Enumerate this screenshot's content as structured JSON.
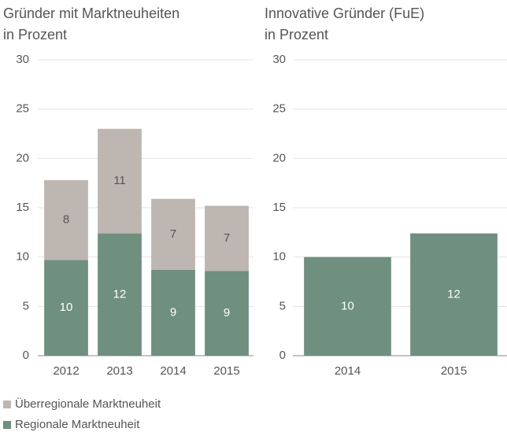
{
  "chart_data": [
    {
      "type": "stacked_bar",
      "title": "Gründer mit Marktneuheiten",
      "subtitle": "in Prozent",
      "categories": [
        "2012",
        "2013",
        "2014",
        "2015"
      ],
      "series": [
        {
          "name": "Regionale Marktneuheit",
          "color": "#6f8f7f",
          "values": [
            9.7,
            12.4,
            8.7,
            8.6
          ],
          "value_labels": [
            "10",
            "12",
            "9",
            "9"
          ]
        },
        {
          "name": "Überregionale Marktneuheit",
          "color": "#bdb6b1",
          "values": [
            8.1,
            10.6,
            7.2,
            6.6
          ],
          "value_labels": [
            "8",
            "11",
            "7",
            "7"
          ]
        }
      ],
      "ylim": [
        0,
        30
      ],
      "yticks": [
        0,
        5,
        10,
        15,
        20,
        25,
        30
      ],
      "grid": true
    },
    {
      "type": "bar",
      "title": "Innovative Gründer (FuE)",
      "subtitle": "in Prozent",
      "categories": [
        "2014",
        "2015"
      ],
      "values": [
        10.0,
        12.4
      ],
      "value_labels": [
        "10",
        "12"
      ],
      "color": "#6f8f7f",
      "ylim": [
        0,
        30
      ],
      "yticks": [
        0,
        5,
        10,
        15,
        20,
        25,
        30
      ],
      "grid": true
    }
  ]
}
